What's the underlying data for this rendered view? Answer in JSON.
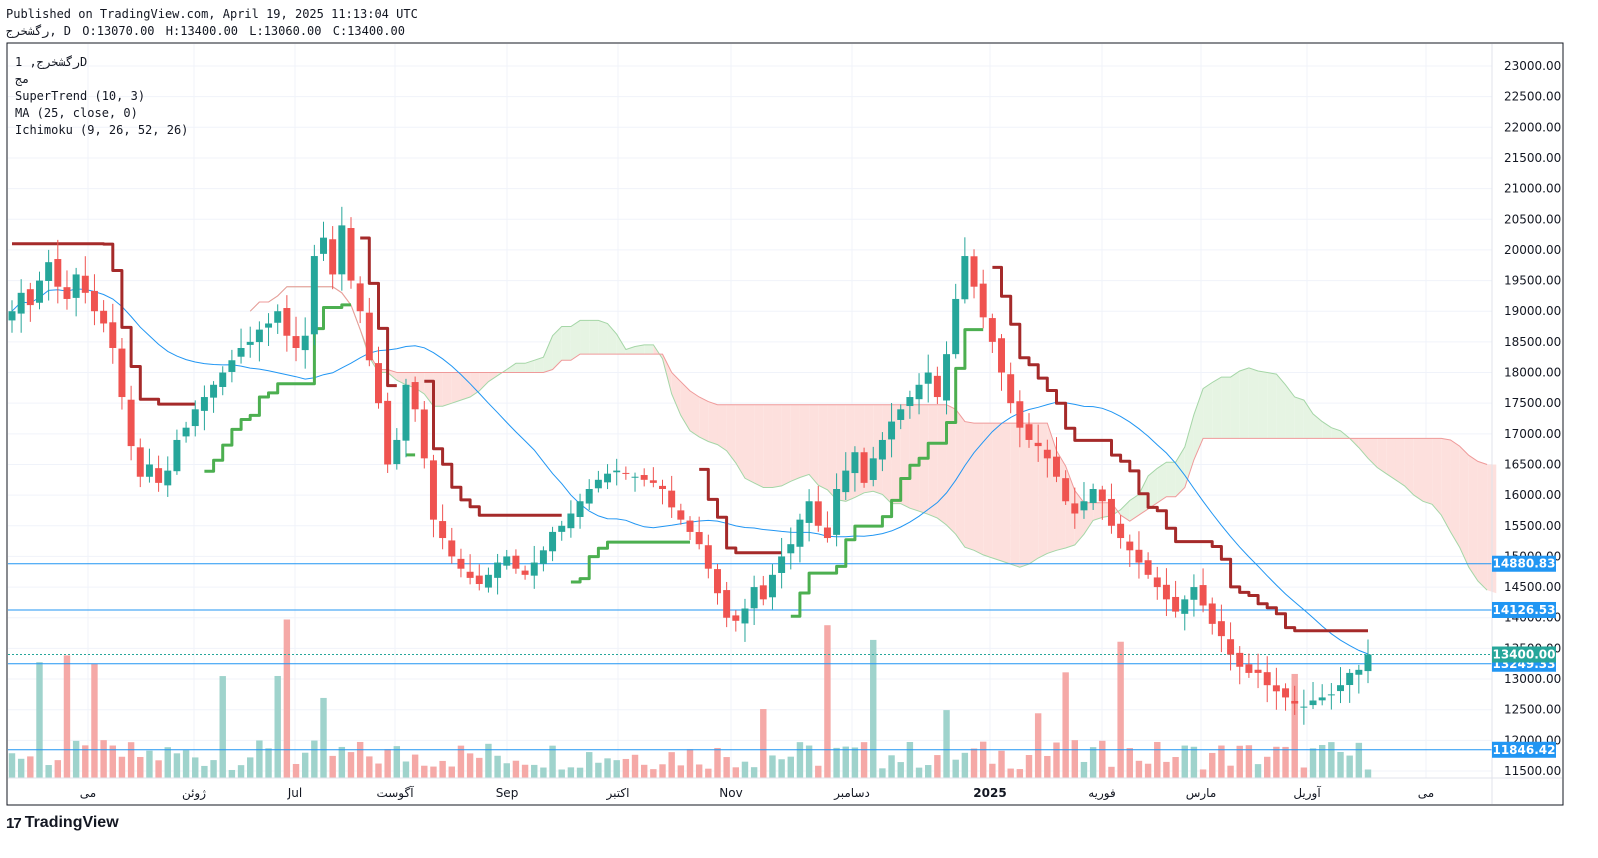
{
  "header": {
    "published": "Published on TradingView.com, April 19, 2025 11:13:04 UTC",
    "symbol": "رگشخرج, D",
    "open": "O:13070.00",
    "high": "H:13400.00",
    "low": "L:13060.00",
    "close": "C:13400.00"
  },
  "legend": {
    "symbol": "رگشخرج, 1D",
    "exchange": "مج",
    "indicators": [
      "SuperTrend (10, 3)",
      "MA (25, close, 0)",
      "Ichimoku (9, 26, 52, 26)"
    ]
  },
  "footer": {
    "brand": "TradingView",
    "mark": "17"
  },
  "colors": {
    "up": "#26a69a",
    "down": "#ef5350",
    "ma": "#2196f3",
    "supertrend_up": "#4caf50",
    "supertrend_down": "#a52a2a",
    "cloud_bear": "#fde0dd",
    "cloud_bull": "#e6f4e3",
    "hline": "#2196f3",
    "label_bg": "#2196f3",
    "label_text": "#ffffff"
  },
  "chart_data": {
    "type": "candlestick",
    "y_ticks": [
      "23000.00",
      "22500.00",
      "22000.00",
      "21500.00",
      "21000.00",
      "20500.00",
      "20000.00",
      "19500.00",
      "19000.00",
      "18500.00",
      "18000.00",
      "17500.00",
      "17000.00",
      "16500.00",
      "16000.00",
      "15500.00",
      "15000.00",
      "14500.00",
      "14000.00",
      "13500.00",
      "13000.00",
      "12500.00",
      "12000.00",
      "11500.00"
    ],
    "ylim": [
      11350,
      23150
    ],
    "x_labels": [
      "می",
      "ژوئن",
      "Jul",
      "آگوست",
      "Sep",
      "اکتبر",
      "Nov",
      "دسامبر",
      "2025",
      "فوریه",
      "مارس",
      "آوریل",
      "می"
    ],
    "horizontal_lines": [
      {
        "value": 14880.83,
        "label": "14880.83"
      },
      {
        "value": 14126.53,
        "label": "14126.53"
      },
      {
        "value": 13249.33,
        "label": "13249.33"
      },
      {
        "value": 11846.42,
        "label": "11846.42"
      }
    ],
    "last_price": {
      "value": 13400.0,
      "label": "13400.00"
    },
    "close_series": [
      19000,
      19300,
      19100,
      19500,
      19800,
      19400,
      19200,
      19600,
      19300,
      19000,
      18800,
      18400,
      17600,
      16800,
      16300,
      16500,
      16200,
      16400,
      16900,
      17100,
      17400,
      17600,
      17800,
      18000,
      18200,
      18400,
      18500,
      18700,
      18800,
      19000,
      18600,
      18400,
      18600,
      19900,
      20200,
      19600,
      20400,
      19500,
      19000,
      18200,
      17500,
      16500,
      16900,
      17800,
      17400,
      16600,
      15600,
      15300,
      15000,
      14800,
      14650,
      14550,
      14700,
      14900,
      15000,
      14800,
      14700,
      14900,
      15100,
      15400,
      15500,
      15700,
      15900,
      16100,
      16250,
      16350,
      16400,
      16350,
      16300,
      16250,
      16200,
      16100,
      15800,
      15600,
      15400,
      15200,
      14800,
      14400,
      14000,
      13950,
      14150,
      14500,
      14300,
      14700,
      15000,
      15200,
      15600,
      15900,
      15500,
      15300,
      16100,
      16400,
      16700,
      16200,
      16600,
      16900,
      17200,
      17400,
      17600,
      17800,
      18000,
      17600,
      18300,
      19200,
      19900,
      19400,
      18900,
      18500,
      18000,
      17500,
      17100,
      16900,
      16800,
      16600,
      16300,
      15900,
      15700,
      15900,
      16100,
      15900,
      15500,
      15300,
      15100,
      14900,
      14700,
      14500,
      14300,
      14100,
      14300,
      14500,
      14200,
      13900,
      13700,
      13400,
      13200,
      13100,
      13100,
      12900,
      12800,
      12700,
      12600,
      12550,
      12650,
      12700,
      12750,
      12900,
      13100,
      13150,
      13400
    ]
  }
}
